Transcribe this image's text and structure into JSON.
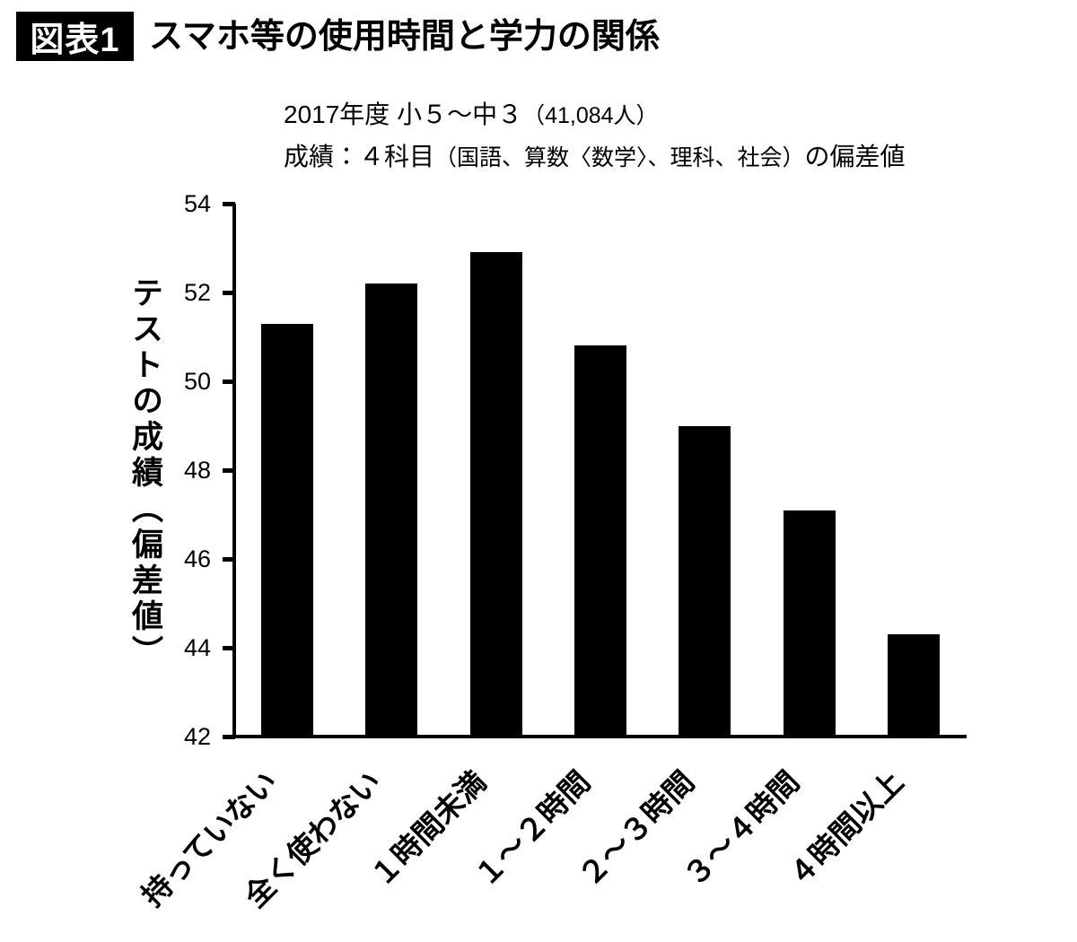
{
  "header": {
    "badge": "図表1",
    "title": "スマホ等の使用時間と学力の関係"
  },
  "subtitle": {
    "line1_main": "2017年度 小５～中３",
    "line1_paren": "（41,084人）",
    "line2_main": "成績：４科目",
    "line2_paren": "（国語、算数〈数学〉、理科、社会）",
    "line2_suffix": "の偏差値"
  },
  "chart_data": {
    "type": "bar",
    "title": "スマホ等の使用時間と学力の関係",
    "subtitle_line1": "2017年度 小５～中３（41,084人）",
    "subtitle_line2": "成績：４科目（国語、算数〈数学〉、理科、社会）の偏差値",
    "categories": [
      "持っていない",
      "全く使わない",
      "１時間未満",
      "１～２時間",
      "２～３時間",
      "３～４時間",
      "４時間以上"
    ],
    "values": [
      51.3,
      52.2,
      52.9,
      50.8,
      49.0,
      47.1,
      44.3
    ],
    "xlabel": "",
    "ylabel": "テストの成績（偏差値）",
    "ylim": [
      42,
      54
    ],
    "yticks": [
      54,
      52,
      50,
      48,
      46,
      44,
      42
    ],
    "grid": false,
    "legend_position": "none",
    "bar_color": "#000000",
    "axis_color": "#000000",
    "background_color": "#ffffff"
  }
}
